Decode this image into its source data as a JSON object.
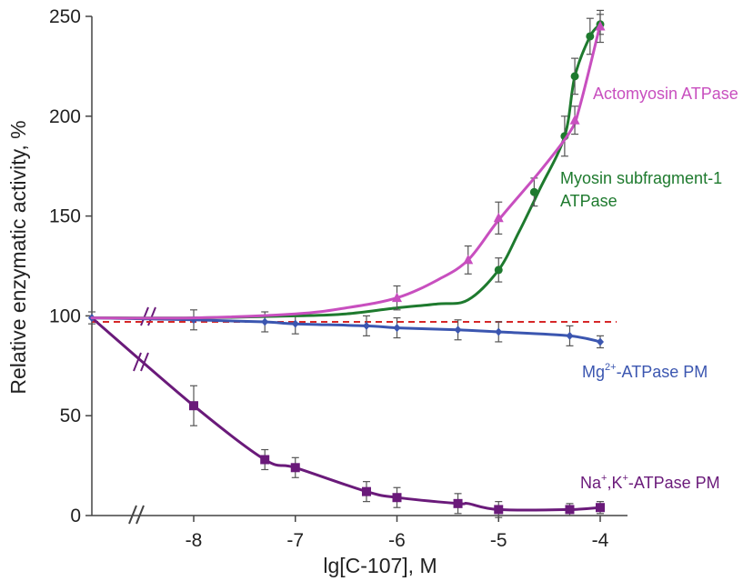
{
  "chart_data": {
    "type": "line",
    "xlabel": "lg[C-107], M",
    "ylabel": "Relative enzymatic activity, %",
    "xlim": [
      -9,
      -3.9
    ],
    "ylim": [
      0,
      250
    ],
    "x_ticks": [
      -8,
      -7,
      -6,
      -5,
      -4
    ],
    "x_tick_labels": [
      "-8",
      "-7",
      "-6",
      "-5",
      "-4"
    ],
    "y_ticks": [
      0,
      50,
      100,
      150,
      200,
      250
    ],
    "y_tick_labels": [
      "0",
      "50",
      "100",
      "150",
      "200",
      "250"
    ],
    "grid": false,
    "reference_line": {
      "y": 97,
      "color": "#d62728",
      "style": "dashed"
    },
    "series": [
      {
        "name": "Actomyosin ATPase",
        "color": "#c84fbf",
        "marker": "triangle",
        "curve_x": [
          -9,
          -8,
          -7,
          -6.5,
          -6,
          -5.6,
          -5.3,
          -5,
          -4.6,
          -4.3,
          -4.2,
          -4.0
        ],
        "curve_y": [
          99,
          99,
          101,
          104,
          109,
          118,
          128,
          148,
          172,
          192,
          205,
          246
        ],
        "points": [
          {
            "x": -6.0,
            "y": 109,
            "err": 6
          },
          {
            "x": -5.3,
            "y": 128,
            "err": 7
          },
          {
            "x": -5.0,
            "y": 149,
            "err": 8
          },
          {
            "x": -4.25,
            "y": 198,
            "err": 7
          },
          {
            "x": -4.0,
            "y": 245,
            "err": 8
          }
        ]
      },
      {
        "name": "Myosin subfragment-1 ATPase",
        "label_lines": [
          "Myosin subfragment-1",
          "ATPase"
        ],
        "color": "#1e7a2e",
        "marker": "circle",
        "curve_x": [
          -9,
          -8,
          -7,
          -6.5,
          -6,
          -5.6,
          -5.3,
          -5.0,
          -4.8,
          -4.6,
          -4.35,
          -4.25,
          -4.1,
          -4.0
        ],
        "curve_y": [
          99,
          99,
          100,
          101,
          104,
          106,
          108,
          123,
          142,
          163,
          190,
          220,
          240,
          246
        ],
        "points": [
          {
            "x": -5.0,
            "y": 123,
            "err": 6
          },
          {
            "x": -4.65,
            "y": 162,
            "err": 7
          },
          {
            "x": -4.35,
            "y": 190,
            "err": 10
          },
          {
            "x": -4.25,
            "y": 220,
            "err": 9
          },
          {
            "x": -4.1,
            "y": 240,
            "err": 9
          },
          {
            "x": -4.0,
            "y": 246,
            "err": 5
          }
        ]
      },
      {
        "name": "Mg²⁺-ATPase PM",
        "label_parts": [
          "Mg",
          "2+",
          "-ATPase PM"
        ],
        "color": "#3b56b0",
        "marker": "diamond",
        "curve_x": [
          -9,
          -8,
          -7.3,
          -7,
          -6.3,
          -6,
          -5.4,
          -5,
          -4.3,
          -4.0
        ],
        "curve_y": [
          99,
          98,
          97,
          96,
          95,
          94,
          93,
          92,
          90,
          87
        ],
        "points": [
          {
            "x": -9.0,
            "y": 99,
            "err": 3
          },
          {
            "x": -8.0,
            "y": 98,
            "err": 5
          },
          {
            "x": -7.3,
            "y": 97,
            "err": 5
          },
          {
            "x": -7.0,
            "y": 96,
            "err": 5
          },
          {
            "x": -6.3,
            "y": 95,
            "err": 5
          },
          {
            "x": -6.0,
            "y": 94,
            "err": 5
          },
          {
            "x": -5.4,
            "y": 93,
            "err": 5
          },
          {
            "x": -5.0,
            "y": 92,
            "err": 5
          },
          {
            "x": -4.3,
            "y": 90,
            "err": 5
          },
          {
            "x": -4.0,
            "y": 87,
            "err": 3
          }
        ]
      },
      {
        "name": "Na⁺,K⁺-ATPase PM",
        "label_parts": [
          "Na",
          "+",
          ",K",
          "+",
          "-ATPase PM"
        ],
        "color": "#6a1a7a",
        "marker": "square",
        "curve_x": [
          -9,
          -8,
          -7.3,
          -7,
          -6.3,
          -6,
          -5.4,
          -5.3,
          -5,
          -4.3,
          -4.0
        ],
        "curve_y": [
          99,
          55,
          28,
          24,
          12,
          9,
          6,
          6,
          3,
          3,
          4
        ],
        "points": [
          {
            "x": -8.0,
            "y": 55,
            "err": 10
          },
          {
            "x": -7.3,
            "y": 28,
            "err": 5
          },
          {
            "x": -7.0,
            "y": 24,
            "err": 5
          },
          {
            "x": -6.3,
            "y": 12,
            "err": 5
          },
          {
            "x": -6.0,
            "y": 9,
            "err": 5
          },
          {
            "x": -5.4,
            "y": 6,
            "err": 5
          },
          {
            "x": -5.0,
            "y": 3,
            "err": 4
          },
          {
            "x": -4.3,
            "y": 3,
            "err": 3
          },
          {
            "x": -4.0,
            "y": 4,
            "err": 3
          }
        ]
      }
    ]
  }
}
